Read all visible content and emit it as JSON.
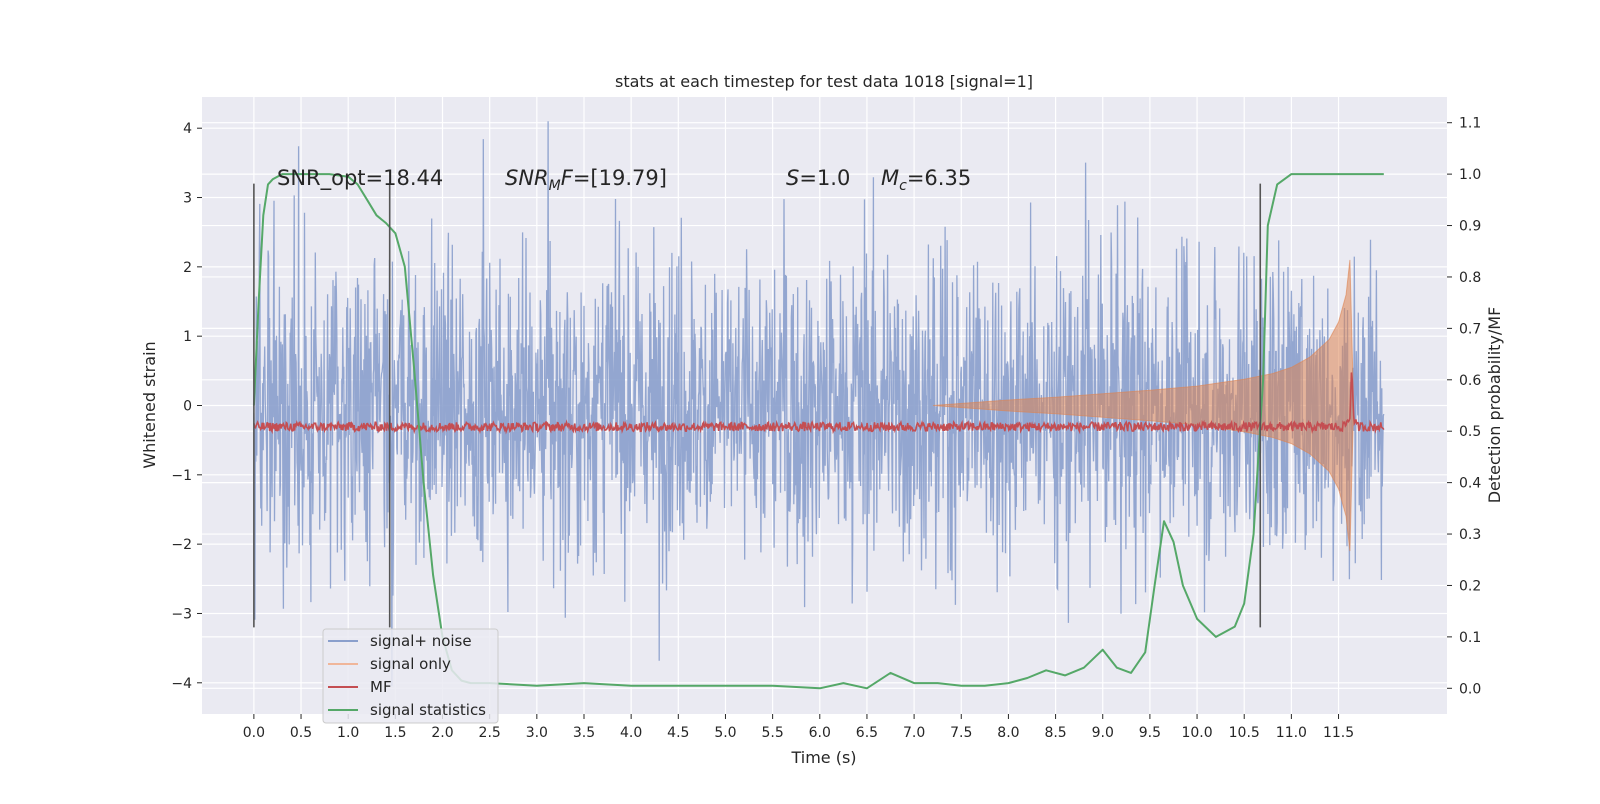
{
  "chart_data": {
    "type": "line",
    "title": "stats at each timestep for test data 1018 [signal=1]",
    "xlabel": "Time (s)",
    "ylabel": "Whitened strain",
    "y2label": "Detection probability/MF",
    "xlim": [
      -0.55,
      12.65
    ],
    "ylim": [
      -4.45,
      4.45
    ],
    "y2lim": [
      -0.05,
      1.15
    ],
    "x_ticks": [
      "0.0",
      "0.5",
      "1.0",
      "1.5",
      "2.0",
      "2.5",
      "3.0",
      "3.5",
      "4.0",
      "4.5",
      "5.0",
      "5.5",
      "6.0",
      "6.5",
      "7.0",
      "7.5",
      "8.0",
      "8.5",
      "9.0",
      "9.5",
      "10.0",
      "10.5",
      "11.0",
      "11.5"
    ],
    "y_ticks": [
      4,
      3,
      2,
      1,
      0,
      -1,
      -2,
      -3,
      -4
    ],
    "y_tick_labels": [
      "4",
      "3",
      "2",
      "1",
      "0",
      "−1",
      "−2",
      "−3",
      "−4"
    ],
    "y2_ticks": [
      "1.1",
      "1.0",
      "0.9",
      "0.8",
      "0.7",
      "0.6",
      "0.5",
      "0.4",
      "0.3",
      "0.2",
      "0.1",
      "0.0"
    ],
    "grid": true,
    "legend_position": "lower-left",
    "annotations": {
      "snr_opt": "SNR_opt=18.44",
      "snr_mf_label": "SNR",
      "snr_mf_sub": "M",
      "snr_mf_tail": "F",
      "snr_mf_value": "=[19.79]",
      "s_label": "S",
      "s_value": "=1.0",
      "mc_label": "M",
      "mc_sub": "c",
      "mc_value": "=6.35"
    },
    "vertical_markers_x": [
      0.0,
      1.44,
      10.67
    ],
    "series": [
      {
        "name": "signal+ noise",
        "color": "#8a9fcc",
        "axis": "left",
        "x_range": [
          0.0,
          11.98
        ],
        "typical_envelope": 1.9,
        "peak_max": 4.1,
        "peak_min": -4.05
      },
      {
        "name": "signal only",
        "color": "#dd8452",
        "axis": "left",
        "x": [
          7.2,
          8.0,
          8.5,
          9.0,
          9.5,
          10.0,
          10.5,
          10.8,
          11.0,
          11.2,
          11.4,
          11.5,
          11.58,
          11.62,
          11.66
        ],
        "amplitude": [
          0.0,
          0.08,
          0.12,
          0.17,
          0.22,
          0.28,
          0.38,
          0.46,
          0.55,
          0.7,
          0.95,
          1.2,
          1.6,
          2.1,
          0.0
        ]
      },
      {
        "name": "MF",
        "color": "#c44e52",
        "axis": "right",
        "x": [
          0.0,
          11.55,
          11.62,
          11.64,
          11.66,
          11.7,
          11.98
        ],
        "y": [
          0.505,
          0.505,
          0.52,
          0.63,
          0.52,
          0.505,
          0.505
        ]
      },
      {
        "name": "signal statistics",
        "color": "#55a868",
        "axis": "right",
        "x": [
          0.0,
          0.05,
          0.1,
          0.15,
          0.2,
          0.3,
          0.5,
          0.8,
          1.0,
          1.1,
          1.2,
          1.3,
          1.4,
          1.5,
          1.6,
          1.7,
          1.8,
          1.9,
          2.0,
          2.1,
          2.2,
          2.3,
          2.5,
          3.0,
          3.5,
          4.0,
          4.5,
          5.0,
          5.5,
          6.0,
          6.25,
          6.5,
          6.75,
          7.0,
          7.25,
          7.5,
          7.75,
          8.0,
          8.2,
          8.4,
          8.6,
          8.8,
          9.0,
          9.15,
          9.3,
          9.45,
          9.55,
          9.65,
          9.75,
          9.85,
          10.0,
          10.2,
          10.4,
          10.5,
          10.6,
          10.7,
          10.75,
          10.85,
          11.0,
          11.2,
          11.5,
          11.98
        ],
        "y": [
          0.55,
          0.75,
          0.92,
          0.98,
          0.99,
          1.0,
          1.0,
          1.0,
          0.995,
          0.98,
          0.95,
          0.92,
          0.905,
          0.885,
          0.82,
          0.62,
          0.4,
          0.22,
          0.1,
          0.035,
          0.015,
          0.01,
          0.01,
          0.005,
          0.01,
          0.005,
          0.005,
          0.005,
          0.005,
          0.0,
          0.01,
          0.0,
          0.03,
          0.01,
          0.01,
          0.005,
          0.005,
          0.01,
          0.02,
          0.035,
          0.025,
          0.04,
          0.075,
          0.04,
          0.03,
          0.07,
          0.2,
          0.325,
          0.285,
          0.2,
          0.135,
          0.1,
          0.12,
          0.165,
          0.3,
          0.6,
          0.9,
          0.98,
          1.0,
          1.0,
          1.0,
          1.0
        ]
      }
    ]
  }
}
